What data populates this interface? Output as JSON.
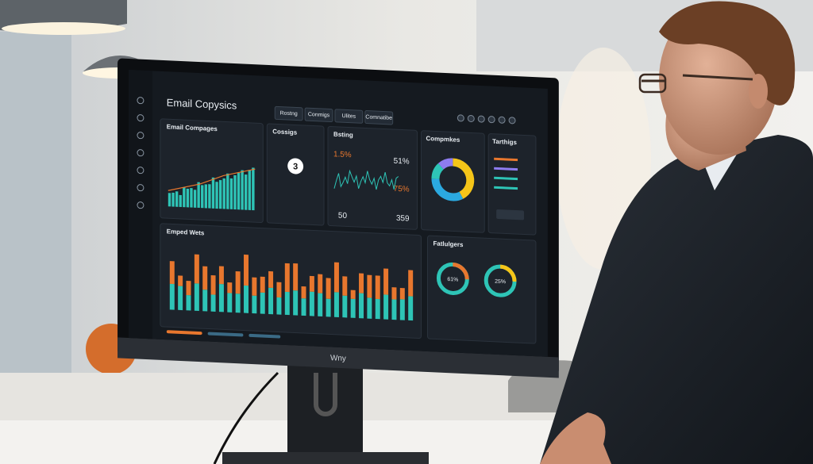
{
  "monitor": {
    "brand": "Wny"
  },
  "dashboard": {
    "title": "Email Copysics",
    "tabs": [
      "Rostng",
      "Conmigs",
      "Ulites",
      "Comnatibe"
    ],
    "panels": {
      "campaigns": {
        "title": "Email Compages"
      },
      "cossigs": {
        "title": "Cossigs",
        "value": 3
      },
      "bsting": {
        "title": "Bsting",
        "left": "1.5%",
        "right": "51%",
        "low": "75%",
        "a": 50,
        "b": 359
      },
      "compmkes": {
        "title": "Compmkes"
      },
      "tarthigs": {
        "title": "Tarthigs"
      },
      "emped": {
        "title": "Emped Wets"
      },
      "fatlulgers": {
        "title": "Fatlulgers",
        "ring1": "61%",
        "ring2": "25%"
      }
    }
  }
}
